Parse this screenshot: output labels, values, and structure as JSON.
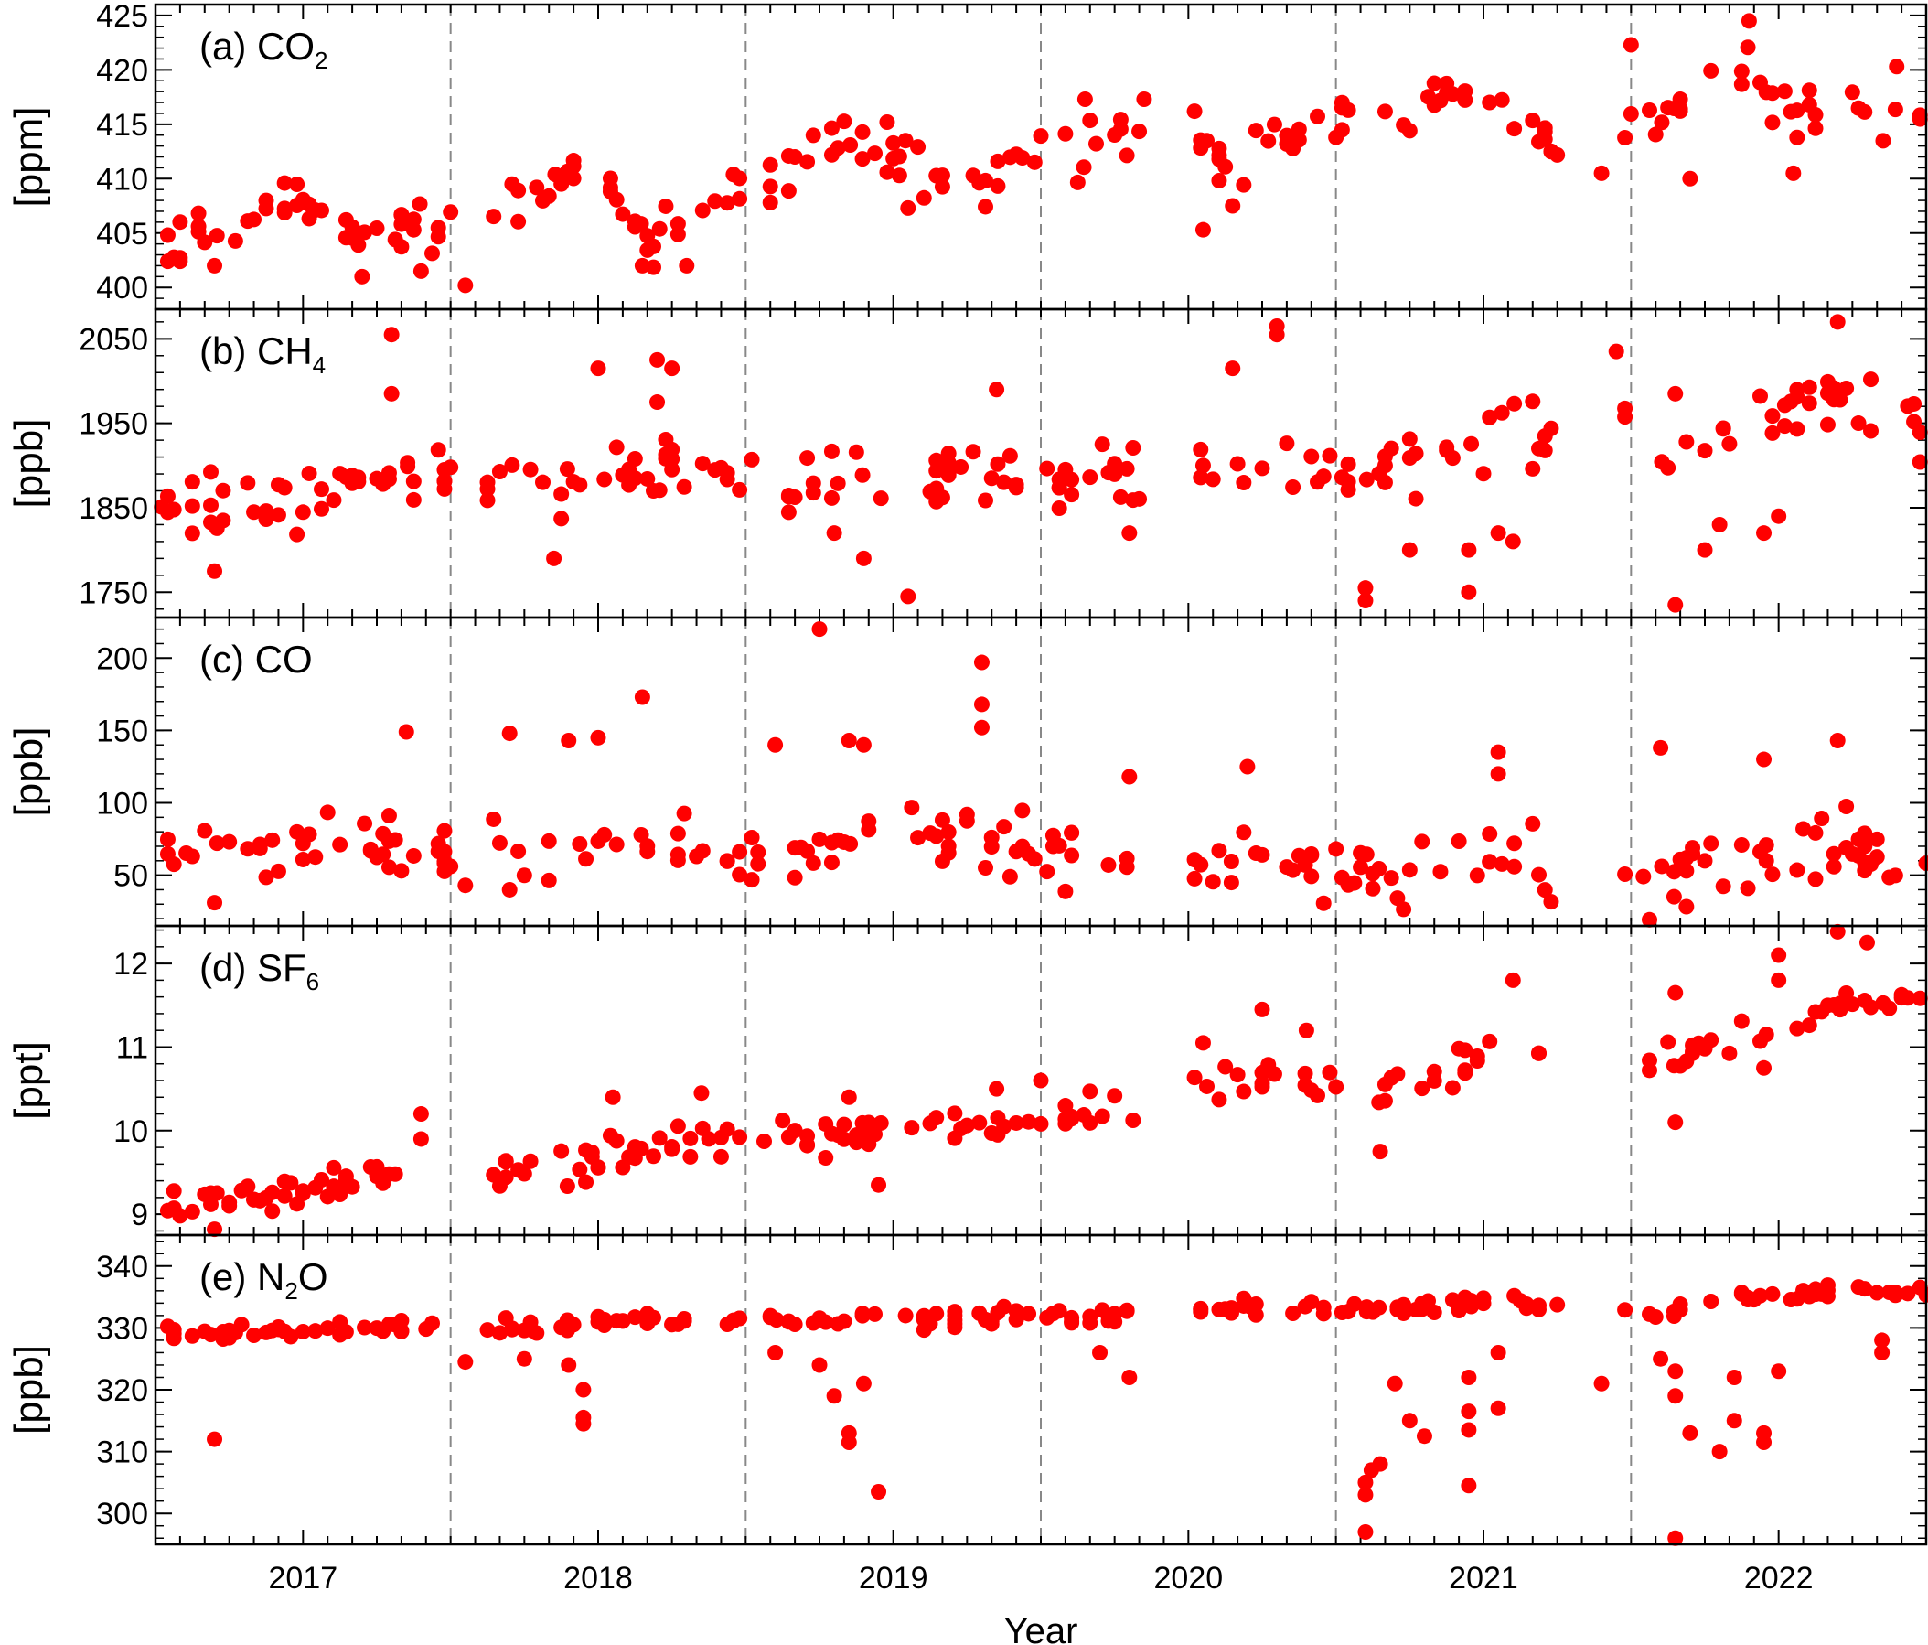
{
  "figure": {
    "xlabel": "Year",
    "x_tick_labels": [
      "2017",
      "2018",
      "2019",
      "2020",
      "2021",
      "2022"
    ],
    "marker_color": "#ff0000"
  },
  "chart_data": [
    {
      "type": "scatter",
      "panel": "a",
      "label_prefix": "(a) CO",
      "label_sub": "2",
      "label_suffix": "",
      "ylabel": "[ppm]",
      "ylim": [
        398,
        426
      ],
      "yticks": [
        400,
        405,
        410,
        415,
        420,
        425
      ],
      "xlim": [
        2016.5,
        2022.5
      ],
      "anchors": [
        [
          2016.55,
          404.5
        ],
        [
          2016.75,
          405
        ],
        [
          2016.95,
          409
        ],
        [
          2017.2,
          405
        ],
        [
          2017.45,
          405
        ],
        [
          2017.6,
          407
        ],
        [
          2017.8,
          409
        ],
        [
          2018.0,
          410
        ],
        [
          2018.2,
          404.5
        ],
        [
          2018.45,
          408
        ],
        [
          2018.6,
          410
        ],
        [
          2018.8,
          414
        ],
        [
          2019.0,
          412
        ],
        [
          2019.15,
          409.5
        ],
        [
          2019.3,
          409
        ],
        [
          2019.5,
          412
        ],
        [
          2019.75,
          413
        ],
        [
          2019.9,
          414.5
        ],
        [
          2020.15,
          412
        ],
        [
          2020.3,
          413
        ],
        [
          2020.5,
          415
        ],
        [
          2020.75,
          415
        ],
        [
          2020.9,
          418
        ],
        [
          2021.1,
          415
        ],
        [
          2021.3,
          413
        ],
        [
          2021.5,
          415
        ],
        [
          2021.7,
          417
        ],
        [
          2021.85,
          421
        ],
        [
          2022.05,
          416.5
        ],
        [
          2022.3,
          415.5
        ],
        [
          2022.45,
          416
        ]
      ],
      "noise": 1.8,
      "outliers": [
        [
          2016.7,
          402
        ],
        [
          2017.2,
          401
        ],
        [
          2017.4,
          401.5
        ],
        [
          2017.55,
          400.2
        ],
        [
          2018.15,
          402
        ],
        [
          2018.3,
          402
        ],
        [
          2019.05,
          407.3
        ],
        [
          2020.05,
          405.3
        ],
        [
          2020.15,
          407.5
        ],
        [
          2019.65,
          417.3
        ],
        [
          2021.4,
          410.5
        ],
        [
          2021.7,
          410
        ],
        [
          2022.05,
          410.5
        ],
        [
          2022.4,
          420.3
        ],
        [
          2021.9,
          424.5
        ],
        [
          2021.5,
          422.3
        ],
        [
          2019.85,
          417.3
        ]
      ]
    },
    {
      "type": "scatter",
      "panel": "b",
      "label_prefix": "(b) CH",
      "label_sub": "4",
      "label_suffix": "",
      "ylabel": "[ppb]",
      "ylim": [
        1720,
        2085
      ],
      "yticks": [
        1750,
        1850,
        1950,
        2050
      ],
      "xlim": [
        2016.5,
        2022.5
      ],
      "anchors": [
        [
          2016.55,
          1855
        ],
        [
          2016.7,
          1845
        ],
        [
          2016.95,
          1865
        ],
        [
          2017.2,
          1880
        ],
        [
          2017.45,
          1890
        ],
        [
          2017.6,
          1870
        ],
        [
          2017.8,
          1870
        ],
        [
          2018.0,
          1880
        ],
        [
          2018.2,
          1890
        ],
        [
          2018.45,
          1875
        ],
        [
          2018.6,
          1870
        ],
        [
          2018.8,
          1875
        ],
        [
          2019.0,
          1880
        ],
        [
          2019.3,
          1890
        ],
        [
          2019.5,
          1895
        ],
        [
          2019.65,
          1890
        ],
        [
          2019.85,
          1890
        ],
        [
          2020.05,
          1910
        ],
        [
          2020.25,
          1910
        ],
        [
          2020.5,
          1900
        ],
        [
          2020.7,
          1900
        ],
        [
          2020.9,
          1930
        ],
        [
          2021.1,
          1950
        ],
        [
          2021.3,
          1960
        ],
        [
          2021.5,
          1930
        ],
        [
          2021.6,
          1900
        ],
        [
          2021.8,
          1920
        ],
        [
          2022.0,
          1950
        ],
        [
          2022.2,
          2000
        ],
        [
          2022.35,
          1950
        ],
        [
          2022.45,
          1940
        ]
      ],
      "noise": 28,
      "outliers": [
        [
          2016.7,
          1775
        ],
        [
          2017.3,
          2055
        ],
        [
          2017.3,
          1985
        ],
        [
          2018.0,
          2015
        ],
        [
          2018.2,
          2025
        ],
        [
          2018.25,
          2015
        ],
        [
          2018.2,
          1975
        ],
        [
          2017.85,
          1790
        ],
        [
          2018.8,
          1820
        ],
        [
          2018.9,
          1790
        ],
        [
          2019.05,
          1745
        ],
        [
          2019.35,
          1990
        ],
        [
          2019.8,
          1820
        ],
        [
          2020.05,
          1900
        ],
        [
          2020.15,
          2015
        ],
        [
          2020.3,
          2065
        ],
        [
          2020.3,
          2055
        ],
        [
          2020.6,
          1740
        ],
        [
          2020.6,
          1755
        ],
        [
          2020.75,
          1800
        ],
        [
          2020.95,
          1750
        ],
        [
          2020.95,
          1800
        ],
        [
          2021.1,
          1810
        ],
        [
          2021.05,
          1820
        ],
        [
          2021.45,
          2035
        ],
        [
          2021.65,
          1735
        ],
        [
          2021.65,
          1985
        ],
        [
          2021.75,
          1800
        ],
        [
          2021.8,
          1830
        ],
        [
          2021.95,
          1820
        ],
        [
          2022.0,
          1840
        ],
        [
          2022.2,
          2070
        ]
      ]
    },
    {
      "type": "scatter",
      "panel": "c",
      "label_prefix": "(c) CO",
      "label_sub": "",
      "label_suffix": "",
      "ylabel": "[ppb]",
      "ylim": [
        15,
        228
      ],
      "yticks": [
        50,
        100,
        150,
        200
      ],
      "xlim": [
        2016.5,
        2022.5
      ],
      "anchors": [
        [
          2016.55,
          68
        ],
        [
          2016.75,
          60
        ],
        [
          2016.95,
          75
        ],
        [
          2017.2,
          72
        ],
        [
          2017.45,
          68
        ],
        [
          2017.6,
          72
        ],
        [
          2017.8,
          68
        ],
        [
          2018.0,
          75
        ],
        [
          2018.2,
          72
        ],
        [
          2018.45,
          60
        ],
        [
          2018.6,
          62
        ],
        [
          2018.8,
          70
        ],
        [
          2019.0,
          75
        ],
        [
          2019.3,
          68
        ],
        [
          2019.5,
          62
        ],
        [
          2019.7,
          55
        ],
        [
          2019.85,
          58
        ],
        [
          2020.05,
          58
        ],
        [
          2020.3,
          50
        ],
        [
          2020.5,
          52
        ],
        [
          2020.75,
          48
        ],
        [
          2020.95,
          62
        ],
        [
          2021.15,
          58
        ],
        [
          2021.35,
          45
        ],
        [
          2021.6,
          45
        ],
        [
          2021.8,
          55
        ],
        [
          2022.0,
          65
        ],
        [
          2022.2,
          72
        ],
        [
          2022.35,
          62
        ],
        [
          2022.45,
          65
        ]
      ],
      "noise": 18,
      "outliers": [
        [
          2017.35,
          149
        ],
        [
          2017.7,
          148
        ],
        [
          2017.9,
          143
        ],
        [
          2018.0,
          145
        ],
        [
          2018.15,
          173
        ],
        [
          2018.6,
          140
        ],
        [
          2018.75,
          220
        ],
        [
          2018.85,
          143
        ],
        [
          2018.9,
          140
        ],
        [
          2019.3,
          197
        ],
        [
          2019.3,
          168
        ],
        [
          2019.3,
          152
        ],
        [
          2019.8,
          118
        ],
        [
          2020.2,
          125
        ],
        [
          2021.05,
          135
        ],
        [
          2021.05,
          120
        ],
        [
          2021.6,
          138
        ],
        [
          2021.95,
          130
        ],
        [
          2022.2,
          143
        ],
        [
          2016.7,
          31
        ],
        [
          2017.55,
          43
        ],
        [
          2017.7,
          40
        ]
      ]
    },
    {
      "type": "scatter",
      "panel": "d",
      "label_prefix": "(d) SF",
      "label_sub": "6",
      "label_suffix": "",
      "ylabel": "[ppt]",
      "ylim": [
        8.75,
        12.45
      ],
      "yticks": [
        9,
        10,
        11,
        12
      ],
      "xlim": [
        2016.5,
        2022.5
      ],
      "anchors": [
        [
          2016.55,
          9.15
        ],
        [
          2016.75,
          9.1
        ],
        [
          2016.95,
          9.3
        ],
        [
          2017.2,
          9.45
        ],
        [
          2017.45,
          9.55
        ],
        [
          2017.6,
          9.5
        ],
        [
          2017.8,
          9.5
        ],
        [
          2017.95,
          9.6
        ],
        [
          2018.2,
          9.8
        ],
        [
          2018.45,
          9.85
        ],
        [
          2018.6,
          9.9
        ],
        [
          2018.8,
          9.95
        ],
        [
          2019.0,
          10.0
        ],
        [
          2019.3,
          10.1
        ],
        [
          2019.5,
          10.2
        ],
        [
          2019.7,
          10.25
        ],
        [
          2019.85,
          10.2
        ],
        [
          2020.05,
          10.5
        ],
        [
          2020.3,
          10.55
        ],
        [
          2020.5,
          10.55
        ],
        [
          2020.7,
          10.5
        ],
        [
          2020.9,
          10.8
        ],
        [
          2021.1,
          10.95
        ],
        [
          2021.3,
          11.0
        ],
        [
          2021.5,
          10.95
        ],
        [
          2021.6,
          10.85
        ],
        [
          2021.8,
          11.0
        ],
        [
          2022.0,
          11.2
        ],
        [
          2022.2,
          11.55
        ],
        [
          2022.35,
          11.4
        ],
        [
          2022.45,
          11.4
        ]
      ],
      "noise": 0.17,
      "outliers": [
        [
          2016.7,
          8.82
        ],
        [
          2017.4,
          10.2
        ],
        [
          2017.4,
          9.9
        ],
        [
          2018.05,
          10.4
        ],
        [
          2018.35,
          10.45
        ],
        [
          2018.85,
          10.4
        ],
        [
          2018.95,
          9.35
        ],
        [
          2019.35,
          10.5
        ],
        [
          2019.5,
          10.6
        ],
        [
          2020.05,
          11.05
        ],
        [
          2020.25,
          11.45
        ],
        [
          2020.4,
          11.2
        ],
        [
          2020.65,
          9.75
        ],
        [
          2021.1,
          11.8
        ],
        [
          2021.65,
          11.65
        ],
        [
          2021.65,
          10.1
        ],
        [
          2021.95,
          10.75
        ],
        [
          2022.0,
          11.8
        ],
        [
          2022.0,
          12.1
        ],
        [
          2022.2,
          12.38
        ],
        [
          2022.3,
          12.25
        ]
      ]
    },
    {
      "type": "scatter",
      "panel": "e",
      "label_prefix": "(e) N",
      "label_sub": "2",
      "label_suffix": "O",
      "ylabel": "[ppb]",
      "ylim": [
        295,
        345
      ],
      "yticks": [
        300,
        310,
        320,
        330,
        340
      ],
      "xlim": [
        2016.5,
        2022.5
      ],
      "anchors": [
        [
          2016.55,
          329
        ],
        [
          2016.75,
          329
        ],
        [
          2016.95,
          329.5
        ],
        [
          2017.2,
          330
        ],
        [
          2017.45,
          330
        ],
        [
          2017.6,
          330
        ],
        [
          2017.8,
          330.5
        ],
        [
          2018.0,
          331
        ],
        [
          2018.3,
          331
        ],
        [
          2018.6,
          331
        ],
        [
          2018.9,
          331.5
        ],
        [
          2019.2,
          331.5
        ],
        [
          2019.5,
          332
        ],
        [
          2019.7,
          332
        ],
        [
          2019.85,
          332
        ],
        [
          2020.05,
          333
        ],
        [
          2020.3,
          333.5
        ],
        [
          2020.5,
          333
        ],
        [
          2020.7,
          333
        ],
        [
          2020.9,
          333.5
        ],
        [
          2021.1,
          334
        ],
        [
          2021.3,
          334
        ],
        [
          2021.5,
          333.5
        ],
        [
          2021.6,
          333
        ],
        [
          2021.8,
          334.5
        ],
        [
          2022.0,
          335
        ],
        [
          2022.2,
          336
        ],
        [
          2022.35,
          336
        ],
        [
          2022.45,
          336
        ]
      ],
      "noise": 1.0,
      "outliers": [
        [
          2016.7,
          312
        ],
        [
          2017.55,
          324.5
        ],
        [
          2017.75,
          325
        ],
        [
          2017.9,
          324
        ],
        [
          2017.95,
          320
        ],
        [
          2017.95,
          315.5
        ],
        [
          2017.95,
          314.5
        ],
        [
          2018.6,
          326
        ],
        [
          2018.75,
          324
        ],
        [
          2018.8,
          319
        ],
        [
          2018.85,
          311.5
        ],
        [
          2018.85,
          313
        ],
        [
          2018.95,
          303.5
        ],
        [
          2018.9,
          321
        ],
        [
          2019.7,
          326
        ],
        [
          2019.8,
          322
        ],
        [
          2020.6,
          305
        ],
        [
          2020.6,
          303
        ],
        [
          2020.6,
          297
        ],
        [
          2020.62,
          307
        ],
        [
          2020.65,
          308
        ],
        [
          2020.7,
          321
        ],
        [
          2020.75,
          315
        ],
        [
          2020.8,
          312.5
        ],
        [
          2020.95,
          313.5
        ],
        [
          2020.95,
          304.5
        ],
        [
          2020.95,
          316.5
        ],
        [
          2020.95,
          322
        ],
        [
          2021.05,
          317
        ],
        [
          2021.05,
          326
        ],
        [
          2021.4,
          321
        ],
        [
          2021.6,
          325
        ],
        [
          2021.65,
          323
        ],
        [
          2021.65,
          319
        ],
        [
          2021.7,
          313
        ],
        [
          2021.65,
          296
        ],
        [
          2021.8,
          310
        ],
        [
          2021.85,
          315
        ],
        [
          2021.85,
          322
        ],
        [
          2021.95,
          313
        ],
        [
          2021.95,
          311.5
        ],
        [
          2022.0,
          323
        ],
        [
          2022.35,
          326
        ],
        [
          2022.35,
          328
        ]
      ]
    }
  ]
}
